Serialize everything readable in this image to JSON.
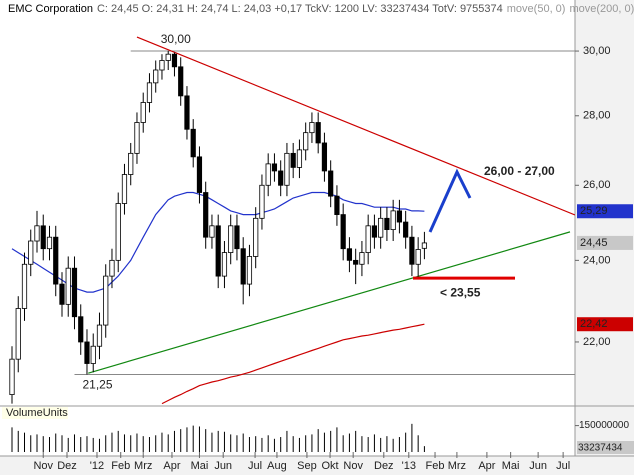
{
  "chart_data": {
    "type": "candlestick",
    "title": "EMC Corporation",
    "info": "C: 24,45  O: 24,31  H: 24,74  L: 24,03  +0,17  TckV: 1200  LV: 33237434  TotV: 9755374",
    "log_scale": true,
    "ylim": [
      20.57,
      31.51
    ],
    "yticks": [
      {
        "value": 22,
        "label": "22,00"
      },
      {
        "value": 24,
        "label": "24,00"
      },
      {
        "value": 26,
        "label": "26,00"
      },
      {
        "value": 28,
        "label": "28,00"
      },
      {
        "value": 30,
        "label": "30,00"
      }
    ],
    "xlim": [
      -1.6,
      90.1
    ],
    "xticks": [
      {
        "value": 5,
        "label": "Nov"
      },
      {
        "value": 8.8,
        "label": "Dez"
      },
      {
        "value": 13.6,
        "label": "'12"
      },
      {
        "value": 17.4,
        "label": "Feb"
      },
      {
        "value": 21,
        "label": "Mrz"
      },
      {
        "value": 25.6,
        "label": "Apr"
      },
      {
        "value": 30,
        "label": "Mai"
      },
      {
        "value": 33.8,
        "label": "Jun"
      },
      {
        "value": 38.9,
        "label": "Jul"
      },
      {
        "value": 42.4,
        "label": "Aug"
      },
      {
        "value": 47.2,
        "label": "Sep"
      },
      {
        "value": 50.9,
        "label": "Okt"
      },
      {
        "value": 54.6,
        "label": "Nov"
      },
      {
        "value": 59.5,
        "label": "Dez"
      },
      {
        "value": 63.5,
        "label": "'13"
      },
      {
        "value": 67.7,
        "label": "Feb"
      },
      {
        "value": 71.2,
        "label": "Mrz"
      },
      {
        "value": 76,
        "label": "Apr"
      },
      {
        "value": 79.8,
        "label": "Mai"
      },
      {
        "value": 84.2,
        "label": "Jun"
      },
      {
        "value": 88.2,
        "label": "Jul"
      }
    ],
    "x": [
      0,
      1,
      2,
      3,
      4,
      5,
      6,
      7,
      8,
      9,
      10,
      11,
      12,
      13,
      14,
      15,
      16,
      17,
      18,
      19,
      20,
      21,
      22,
      23,
      24,
      25,
      26,
      27,
      28,
      29,
      30,
      31,
      32,
      33,
      34,
      35,
      36,
      37,
      38,
      39,
      40,
      41,
      42,
      43,
      44,
      45,
      46,
      47,
      48,
      49,
      50,
      51,
      52,
      53,
      54,
      55,
      56,
      57,
      58,
      59,
      60,
      61,
      62,
      63,
      64,
      65,
      66
    ],
    "candles": {
      "open": [
        20.8,
        21.6,
        22.8,
        23.9,
        24.5,
        24.9,
        24.3,
        24.6,
        23.4,
        22.9,
        23.8,
        22.6,
        22.0,
        21.5,
        21.9,
        22.4,
        23.6,
        24.0,
        25.5,
        26.3,
        26.9,
        27.8,
        28.4,
        29.0,
        29.4,
        29.7,
        29.9,
        29.5,
        28.6,
        27.6,
        26.8,
        25.8,
        24.6,
        24.9,
        23.6,
        24.2,
        24.9,
        24.3,
        23.4,
        24.1,
        25.1,
        26.0,
        26.6,
        26.4,
        26.0,
        26.9,
        26.5,
        27.0,
        27.5,
        27.8,
        27.2,
        26.4,
        25.7,
        25.2,
        24.3,
        24.0,
        23.9,
        24.2,
        24.9,
        24.6,
        25.1,
        24.8,
        25.3,
        25.0,
        24.6,
        23.9,
        24.31
      ],
      "high": [
        21.9,
        23.1,
        24.2,
        24.8,
        25.3,
        25.2,
        24.9,
        24.9,
        23.7,
        24.1,
        24.1,
        22.9,
        22.3,
        22.2,
        22.7,
        23.9,
        24.3,
        25.8,
        26.6,
        27.2,
        28.1,
        28.7,
        29.3,
        29.7,
        29.9,
        30.0,
        29.95,
        29.8,
        28.9,
        27.9,
        27.1,
        26.1,
        25.2,
        25.2,
        24.5,
        25.2,
        25.2,
        24.6,
        24.4,
        25.4,
        26.3,
        26.9,
        26.9,
        26.7,
        27.2,
        27.2,
        27.3,
        27.8,
        28.1,
        28.1,
        27.5,
        26.7,
        26.0,
        25.5,
        24.6,
        24.3,
        24.5,
        25.2,
        25.2,
        25.4,
        25.4,
        25.6,
        25.6,
        25.3,
        24.9,
        24.6,
        24.74
      ],
      "low": [
        20.6,
        21.3,
        22.5,
        23.6,
        24.2,
        24.0,
        24.0,
        23.1,
        22.6,
        22.6,
        22.3,
        21.7,
        21.25,
        21.3,
        21.6,
        22.1,
        23.3,
        23.7,
        25.2,
        26.0,
        26.6,
        27.5,
        28.1,
        28.7,
        29.1,
        29.4,
        29.2,
        28.3,
        27.3,
        26.5,
        25.5,
        24.3,
        24.3,
        23.3,
        23.3,
        23.9,
        24.0,
        22.9,
        23.1,
        23.8,
        24.8,
        25.7,
        26.1,
        25.7,
        25.7,
        26.2,
        26.2,
        26.7,
        27.2,
        26.9,
        26.1,
        25.4,
        24.9,
        24.0,
        23.7,
        23.4,
        23.6,
        23.9,
        24.3,
        24.3,
        24.5,
        24.5,
        24.7,
        24.3,
        23.6,
        23.55,
        24.03
      ],
      "close": [
        21.6,
        22.8,
        23.9,
        24.5,
        24.9,
        24.3,
        24.6,
        23.4,
        22.9,
        23.8,
        22.6,
        22.0,
        21.5,
        21.9,
        22.4,
        23.6,
        24.0,
        25.5,
        26.3,
        26.9,
        27.8,
        28.4,
        29.0,
        29.4,
        29.7,
        29.9,
        29.5,
        28.6,
        27.6,
        26.8,
        25.8,
        24.6,
        24.9,
        23.6,
        24.2,
        24.9,
        24.3,
        23.4,
        24.1,
        25.1,
        26.0,
        26.6,
        26.4,
        26.0,
        26.9,
        26.5,
        27.0,
        27.5,
        27.8,
        27.2,
        26.4,
        25.7,
        25.2,
        24.3,
        24.0,
        23.9,
        24.2,
        24.9,
        24.6,
        25.1,
        24.8,
        25.3,
        25.0,
        24.6,
        23.9,
        24.28,
        24.45
      ],
      "end_label": "24,45"
    },
    "series": [
      {
        "name": "move(50, 0)",
        "color": "#2233cc",
        "end_label": "25,29",
        "values": [
          24.3,
          24.2,
          24.1,
          24.0,
          23.9,
          23.8,
          23.7,
          23.6,
          23.5,
          23.4,
          23.3,
          23.25,
          23.2,
          23.2,
          23.25,
          23.3,
          23.45,
          23.6,
          23.8,
          24.0,
          24.3,
          24.6,
          24.9,
          25.2,
          25.4,
          25.6,
          25.7,
          25.75,
          25.8,
          25.8,
          25.75,
          25.7,
          25.6,
          25.5,
          25.4,
          25.3,
          25.25,
          25.2,
          25.2,
          25.2,
          25.25,
          25.3,
          25.35,
          25.45,
          25.55,
          25.65,
          25.7,
          25.75,
          25.8,
          25.8,
          25.8,
          25.75,
          25.7,
          25.6,
          25.55,
          25.5,
          25.5,
          25.45,
          25.4,
          25.4,
          25.4,
          25.4,
          25.35,
          25.35,
          25.3,
          25.3,
          25.29
        ]
      },
      {
        "name": "move(200, 0)",
        "color": "#cc0000",
        "end_label": "22,42",
        "values": [
          null,
          null,
          null,
          null,
          null,
          null,
          null,
          null,
          null,
          null,
          null,
          null,
          null,
          null,
          null,
          null,
          null,
          null,
          null,
          null,
          null,
          null,
          null,
          null,
          20.6,
          20.67,
          20.74,
          20.8,
          20.87,
          20.93,
          21.0,
          21.04,
          21.08,
          21.11,
          21.15,
          21.19,
          21.22,
          21.26,
          21.3,
          21.35,
          21.4,
          21.45,
          21.5,
          21.55,
          21.6,
          21.65,
          21.7,
          21.75,
          21.8,
          21.85,
          21.9,
          21.95,
          22.0,
          22.05,
          22.08,
          22.11,
          22.14,
          22.16,
          22.19,
          22.22,
          22.25,
          22.28,
          22.3,
          22.33,
          22.36,
          22.39,
          22.42
        ]
      }
    ],
    "reference_lines": [
      {
        "value": 30,
        "label": "30,00"
      },
      {
        "value": 21.25,
        "label": "21,25"
      }
    ],
    "trendlines": [
      {
        "color": "#cc0000",
        "x": [
          20.0,
          90.1
        ],
        "y": [
          30.45,
          25.19
        ]
      },
      {
        "color": "#118811",
        "x": [
          12.2,
          89.3
        ],
        "y": [
          21.28,
          24.74
        ]
      }
    ],
    "annotations": [
      {
        "text": "26,00 - 27,00",
        "color": "#1a3fcc"
      },
      {
        "text": "< 23,55",
        "color": "#e00000",
        "value": 23.55
      }
    ],
    "volume": {
      "label": "VolumeUnits",
      "ylim": [
        0,
        250000000
      ],
      "yticks": [
        150000000
      ],
      "values": [
        140000000,
        120000000,
        110000000,
        95000000,
        100000000,
        90000000,
        85000000,
        105000000,
        95000000,
        80000000,
        100000000,
        85000000,
        90000000,
        80000000,
        75000000,
        95000000,
        110000000,
        120000000,
        100000000,
        95000000,
        105000000,
        90000000,
        85000000,
        95000000,
        110000000,
        100000000,
        120000000,
        130000000,
        140000000,
        150000000,
        145000000,
        130000000,
        110000000,
        120000000,
        115000000,
        100000000,
        95000000,
        105000000,
        85000000,
        90000000,
        80000000,
        95000000,
        75000000,
        85000000,
        120000000,
        90000000,
        80000000,
        95000000,
        100000000,
        130000000,
        110000000,
        120000000,
        140000000,
        95000000,
        105000000,
        120000000,
        90000000,
        85000000,
        100000000,
        80000000,
        90000000,
        75000000,
        85000000,
        110000000,
        160000000,
        95000000,
        33237434
      ]
    }
  }
}
